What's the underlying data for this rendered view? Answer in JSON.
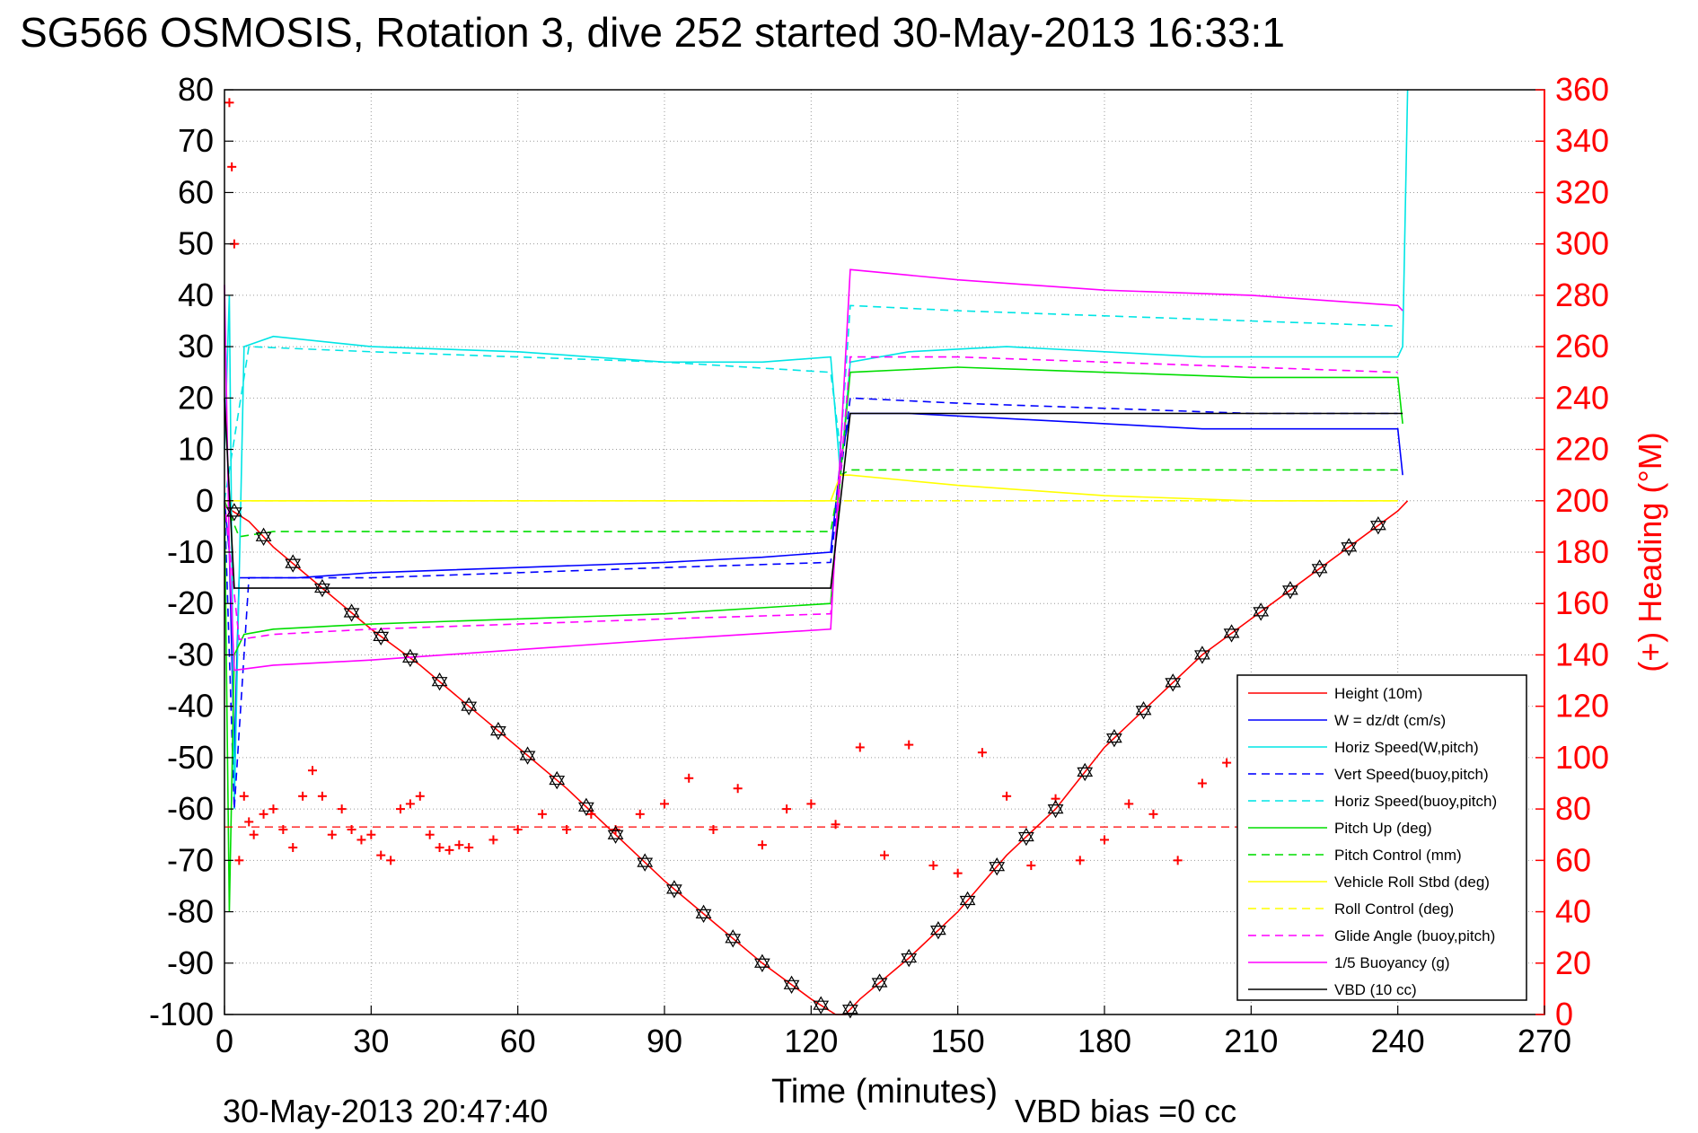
{
  "chart_data": {
    "type": "line",
    "title": "SG566 OSMOSIS, Rotation 3, dive 252 started 30-May-2013 16:33:1",
    "xlabel": "Time (minutes)",
    "ylabel_right": "(+) Heading (°M)",
    "footer_date": "30-May-2013 20:47:40",
    "footer_bias": "VBD bias =0 cc",
    "xlim": [
      0,
      270
    ],
    "ylim": [
      -100,
      80
    ],
    "ylim_right": [
      0,
      360
    ],
    "x_ticks": [
      0,
      30,
      60,
      90,
      120,
      150,
      180,
      210,
      240,
      270
    ],
    "y_ticks": [
      80,
      70,
      60,
      50,
      40,
      30,
      20,
      10,
      0,
      -10,
      -20,
      -30,
      -40,
      -50,
      -60,
      -70,
      -80,
      -90,
      -100
    ],
    "y_ticks_right": [
      360,
      340,
      320,
      300,
      280,
      260,
      240,
      220,
      200,
      180,
      160,
      140,
      120,
      100,
      80,
      60,
      40,
      20,
      0
    ],
    "grid": true,
    "legend_position": "bottom-right",
    "colors": {
      "red": "#ff0000",
      "blue": "#0000ff",
      "cyan": "#00e5e5",
      "green": "#00dd00",
      "yellow": "#ffff00",
      "magenta": "#ff00ff",
      "black": "#000000"
    },
    "series": [
      {
        "name": "Height (10m)",
        "color": "#ff0000",
        "dash": false,
        "x": [
          0,
          5,
          10,
          20,
          30,
          40,
          50,
          60,
          70,
          80,
          90,
          100,
          110,
          120,
          125,
          127,
          130,
          140,
          150,
          160,
          170,
          180,
          190,
          200,
          210,
          220,
          230,
          240,
          242
        ],
        "y": [
          -1,
          -4,
          -9,
          -17,
          -25,
          -32,
          -40,
          -48,
          -56,
          -65,
          -74,
          -82,
          -90,
          -97,
          -100,
          -100,
          -97,
          -89,
          -80,
          -69,
          -60,
          -48,
          -39,
          -30,
          -23,
          -16,
          -9,
          -2,
          0
        ]
      },
      {
        "name": "W = dz/dt (cm/s)",
        "color": "#0000ff",
        "dash": false,
        "x": [
          0,
          1,
          2,
          3,
          5,
          15,
          30,
          60,
          90,
          110,
          124,
          126,
          128,
          140,
          160,
          180,
          200,
          220,
          240,
          241
        ],
        "y": [
          0,
          -10,
          -50,
          -15,
          -15,
          -15,
          -14,
          -13,
          -12,
          -11,
          -10,
          8,
          17,
          17,
          16,
          15,
          14,
          14,
          14,
          5
        ]
      },
      {
        "name": "Horiz Speed(W,pitch)",
        "color": "#00e5e5",
        "dash": false,
        "x": [
          0,
          1,
          2,
          4,
          10,
          30,
          60,
          90,
          110,
          124,
          126,
          128,
          140,
          160,
          180,
          200,
          220,
          240,
          241,
          242
        ],
        "y": [
          10,
          40,
          -60,
          30,
          32,
          30,
          29,
          27,
          27,
          28,
          5,
          27,
          29,
          30,
          29,
          28,
          28,
          28,
          30,
          80
        ]
      },
      {
        "name": "Vert Speed(buoy,pitch)",
        "color": "#0000ff",
        "dash": true,
        "x": [
          0,
          2,
          5,
          30,
          60,
          90,
          124,
          126,
          128,
          150,
          180,
          210,
          240
        ],
        "y": [
          0,
          -60,
          -15,
          -15,
          -14,
          -13,
          -12,
          5,
          20,
          19,
          18,
          17,
          17
        ]
      },
      {
        "name": "Horiz Speed(buoy,pitch)",
        "color": "#00e5e5",
        "dash": true,
        "x": [
          0,
          5,
          30,
          60,
          90,
          124,
          126,
          128,
          150,
          180,
          210,
          240
        ],
        "y": [
          0,
          30,
          29,
          28,
          27,
          25,
          10,
          38,
          37,
          36,
          35,
          34
        ]
      },
      {
        "name": "Pitch Up (deg)",
        "color": "#00dd00",
        "dash": false,
        "x": [
          0,
          1,
          2,
          4,
          10,
          30,
          60,
          90,
          124,
          126,
          128,
          150,
          180,
          210,
          240,
          241
        ],
        "y": [
          0,
          -80,
          -30,
          -26,
          -25,
          -24,
          -23,
          -22,
          -20,
          5,
          25,
          26,
          25,
          24,
          24,
          15
        ]
      },
      {
        "name": "Pitch Control (mm)",
        "color": "#00dd00",
        "dash": true,
        "x": [
          0,
          3,
          10,
          30,
          60,
          90,
          124,
          126,
          128,
          150,
          180,
          210,
          240
        ],
        "y": [
          0,
          -7,
          -6,
          -6,
          -6,
          -6,
          -6,
          5,
          6,
          6,
          6,
          6,
          6
        ]
      },
      {
        "name": "Vehicle Roll Stbd (deg)",
        "color": "#ffff00",
        "dash": false,
        "x": [
          0,
          5,
          20,
          40,
          60,
          80,
          100,
          124,
          126,
          128,
          150,
          180,
          210,
          240
        ],
        "y": [
          0,
          0,
          0,
          0,
          0,
          0,
          0,
          0,
          5,
          5,
          3,
          1,
          0,
          0
        ]
      },
      {
        "name": "Roll Control (deg)",
        "color": "#ffff00",
        "dash": true,
        "x": [
          0,
          124,
          126,
          240
        ],
        "y": [
          0,
          0,
          0,
          0
        ]
      },
      {
        "name": "Glide Angle (buoy,pitch)",
        "color": "#ff00ff",
        "dash": true,
        "x": [
          0,
          3,
          10,
          30,
          60,
          90,
          124,
          126,
          128,
          150,
          180,
          210,
          240
        ],
        "y": [
          0,
          -27,
          -26,
          -25,
          -24,
          -23,
          -22,
          5,
          28,
          28,
          27,
          26,
          25
        ]
      },
      {
        "name": "1/5 Buoyancy (g)",
        "color": "#ff00ff",
        "dash": false,
        "x": [
          0,
          1,
          2,
          10,
          30,
          60,
          90,
          124,
          128,
          150,
          180,
          210,
          240,
          241
        ],
        "y": [
          42,
          -10,
          -33,
          -32,
          -31,
          -29,
          -27,
          -25,
          45,
          43,
          41,
          40,
          38,
          37
        ]
      },
      {
        "name": "VBD (10 cc)",
        "color": "#000000",
        "dash": false,
        "x": [
          0,
          2,
          124,
          126,
          128,
          241
        ],
        "y": [
          20,
          -17,
          -17,
          0,
          17,
          17
        ]
      }
    ],
    "heading_mean_deg": 73,
    "heading_points": {
      "x": [
        1,
        1.5,
        2,
        3,
        4,
        5,
        6,
        8,
        10,
        12,
        14,
        16,
        18,
        20,
        22,
        24,
        26,
        28,
        30,
        32,
        34,
        36,
        38,
        40,
        42,
        44,
        46,
        48,
        50,
        55,
        60,
        65,
        70,
        75,
        80,
        85,
        90,
        95,
        100,
        105,
        110,
        115,
        120,
        125,
        130,
        135,
        140,
        145,
        150,
        155,
        160,
        165,
        170,
        175,
        180,
        185,
        190,
        195,
        200,
        205,
        210,
        215,
        220,
        225,
        230,
        235,
        240
      ],
      "y": [
        355,
        330,
        300,
        60,
        85,
        75,
        70,
        78,
        80,
        72,
        65,
        85,
        95,
        85,
        70,
        80,
        72,
        68,
        70,
        62,
        60,
        80,
        82,
        85,
        70,
        65,
        64,
        66,
        65,
        68,
        72,
        78,
        72,
        78,
        72,
        78,
        82,
        92,
        72,
        88,
        66,
        80,
        82,
        74,
        104,
        62,
        105,
        58,
        55,
        102,
        85,
        58,
        84,
        60,
        68,
        82,
        78,
        60,
        90,
        98,
        55,
        78,
        60,
        70,
        84,
        60,
        78
      ]
    }
  }
}
